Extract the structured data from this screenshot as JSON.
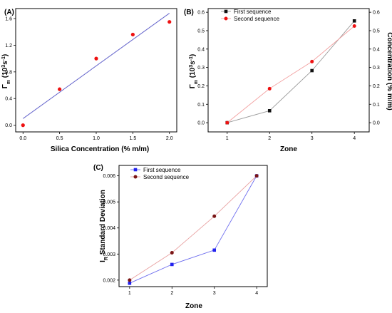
{
  "chart_data": [
    {
      "panel_label": "(A)",
      "type": "scatter",
      "xlabel": "Silica Concentration (% m/m)",
      "ylabel_main": "Γ",
      "ylabel_sub": "m",
      "ylabel_mid": " (10",
      "ylabel_sup1": "3",
      "ylabel_s": "s",
      "ylabel_sup2": "-1",
      "ylabel_end": ")",
      "xlim": [
        -0.1,
        2.1
      ],
      "ylim": [
        -0.1,
        1.75
      ],
      "xticks": [
        "0.0",
        "0.5",
        "1.0",
        "1.5",
        "2.0"
      ],
      "yticks": [
        "0.0",
        "0.4",
        "0.8",
        "1.2",
        "1.6"
      ],
      "points": {
        "x": [
          0.0,
          0.5,
          1.0,
          1.5,
          2.0
        ],
        "y": [
          0.0,
          0.54,
          1.0,
          1.36,
          1.55
        ]
      },
      "fit_line": {
        "x": [
          0.0,
          2.0
        ],
        "y": [
          0.1,
          1.68
        ]
      },
      "colors": {
        "points": "#ee1111",
        "fit": "#6666cc"
      }
    },
    {
      "panel_label": "(B)",
      "type": "line",
      "xlabel": "Zone",
      "ylabel_main": "Γ",
      "ylabel_sub": "m",
      "ylabel_mid": " (10",
      "ylabel_sup1": "3",
      "ylabel_s": "s",
      "ylabel_sup2": "-1",
      "ylabel_end": ")",
      "ylabel_right": "Concentration (% m/m)",
      "xlim": [
        0.55,
        4.35
      ],
      "ylim": [
        -0.05,
        0.62
      ],
      "xticks": [
        "1",
        "2",
        "3",
        "4"
      ],
      "yticks": [
        "0.0",
        "0.1",
        "0.2",
        "0.3",
        "0.4",
        "0.5",
        "0.6"
      ],
      "yticks_right": [
        "0.0",
        "0.1",
        "0.2",
        "0.3",
        "0.4",
        "0.5",
        "0.6"
      ],
      "legend_position": "top-left",
      "x": [
        1,
        2,
        3,
        4
      ],
      "series": [
        {
          "name": "First sequence",
          "values": [
            0.0,
            0.065,
            0.283,
            0.553
          ],
          "color": "#111111",
          "line_color": "#999999",
          "marker": "square"
        },
        {
          "name": "Second sequence",
          "values": [
            0.0,
            0.185,
            0.332,
            0.525
          ],
          "color": "#ee1111",
          "line_color": "#f2a0a0",
          "marker": "circle"
        }
      ]
    },
    {
      "panel_label": "(C)",
      "type": "line",
      "xlabel": "Zone",
      "ylabel_main": "I",
      "ylabel_sub": "R",
      "ylabel_end": " Standard Deviation",
      "xlim": [
        0.75,
        4.25
      ],
      "ylim": [
        0.00175,
        0.0064
      ],
      "xticks": [
        "1",
        "2",
        "3",
        "4"
      ],
      "yticks": [
        "0.002",
        "0.003",
        "0.004",
        "0.005",
        "0.006"
      ],
      "legend_position": "top-left",
      "x": [
        1,
        2,
        3,
        4
      ],
      "series": [
        {
          "name": "First sequence",
          "values": [
            0.00188,
            0.0026,
            0.00315,
            0.006
          ],
          "color": "#2222ee",
          "line_color": "#6b6bee",
          "marker": "square"
        },
        {
          "name": "Second sequence",
          "values": [
            0.002,
            0.00305,
            0.00445,
            0.006
          ],
          "color": "#7a1515",
          "line_color": "#e8a0a0",
          "marker": "circle"
        }
      ]
    }
  ]
}
